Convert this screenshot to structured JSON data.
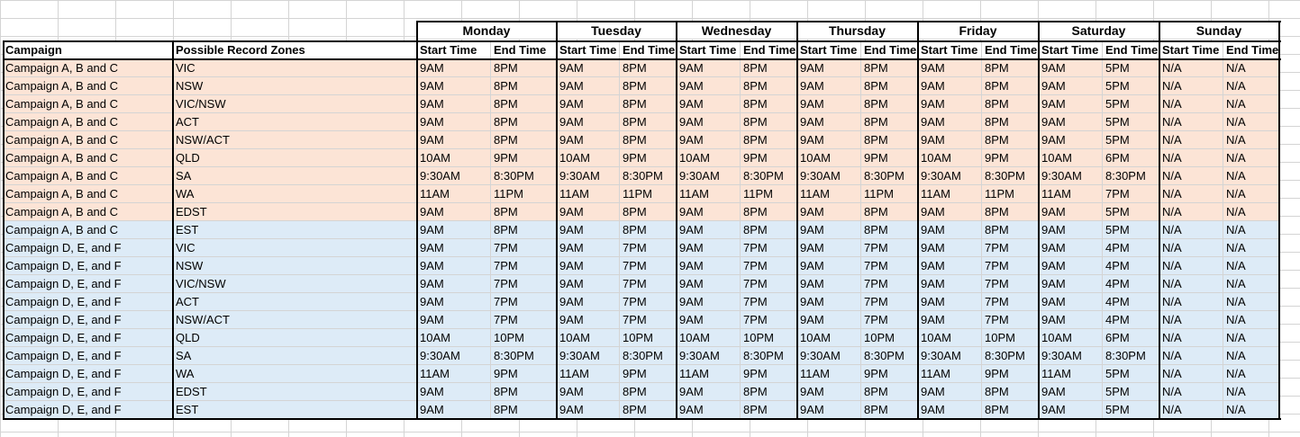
{
  "days": [
    "Monday",
    "Tuesday",
    "Wednesday",
    "Thursday",
    "Friday",
    "Saturday",
    "Sunday"
  ],
  "headers": {
    "campaign": "Campaign",
    "zones": "Possible Record Zones",
    "start": "Start Time",
    "end": "End Time"
  },
  "colors": {
    "group1": "#fce4d6",
    "group2": "#ddebf7",
    "border": "#000000",
    "gridline": "#d4d4d4"
  },
  "rows": [
    {
      "campaign": "Campaign A, B and C",
      "zone": "VIC",
      "g": 1,
      "times": [
        "9AM",
        "8PM",
        "9AM",
        "8PM",
        "9AM",
        "8PM",
        "9AM",
        "8PM",
        "9AM",
        "8PM",
        "9AM",
        "5PM",
        "N/A",
        "N/A"
      ]
    },
    {
      "campaign": "Campaign A, B and C",
      "zone": "NSW",
      "g": 1,
      "times": [
        "9AM",
        "8PM",
        "9AM",
        "8PM",
        "9AM",
        "8PM",
        "9AM",
        "8PM",
        "9AM",
        "8PM",
        "9AM",
        "5PM",
        "N/A",
        "N/A"
      ]
    },
    {
      "campaign": "Campaign A, B and C",
      "zone": "VIC/NSW",
      "g": 1,
      "times": [
        "9AM",
        "8PM",
        "9AM",
        "8PM",
        "9AM",
        "8PM",
        "9AM",
        "8PM",
        "9AM",
        "8PM",
        "9AM",
        "5PM",
        "N/A",
        "N/A"
      ]
    },
    {
      "campaign": "Campaign A, B and C",
      "zone": "ACT",
      "g": 1,
      "times": [
        "9AM",
        "8PM",
        "9AM",
        "8PM",
        "9AM",
        "8PM",
        "9AM",
        "8PM",
        "9AM",
        "8PM",
        "9AM",
        "5PM",
        "N/A",
        "N/A"
      ]
    },
    {
      "campaign": "Campaign A, B and C",
      "zone": "NSW/ACT",
      "g": 1,
      "times": [
        "9AM",
        "8PM",
        "9AM",
        "8PM",
        "9AM",
        "8PM",
        "9AM",
        "8PM",
        "9AM",
        "8PM",
        "9AM",
        "5PM",
        "N/A",
        "N/A"
      ]
    },
    {
      "campaign": "Campaign A, B and C",
      "zone": "QLD",
      "g": 1,
      "times": [
        "10AM",
        "9PM",
        "10AM",
        "9PM",
        "10AM",
        "9PM",
        "10AM",
        "9PM",
        "10AM",
        "9PM",
        "10AM",
        "6PM",
        "N/A",
        "N/A"
      ]
    },
    {
      "campaign": "Campaign A, B and C",
      "zone": "SA",
      "g": 1,
      "times": [
        "9:30AM",
        "8:30PM",
        "9:30AM",
        "8:30PM",
        "9:30AM",
        "8:30PM",
        "9:30AM",
        "8:30PM",
        "9:30AM",
        "8:30PM",
        "9:30AM",
        "8:30PM",
        "N/A",
        "N/A"
      ]
    },
    {
      "campaign": "Campaign A, B and C",
      "zone": "WA",
      "g": 1,
      "times": [
        "11AM",
        "11PM",
        "11AM",
        "11PM",
        "11AM",
        "11PM",
        "11AM",
        "11PM",
        "11AM",
        "11PM",
        "11AM",
        "7PM",
        "N/A",
        "N/A"
      ]
    },
    {
      "campaign": "Campaign A, B and C",
      "zone": "EDST",
      "g": 1,
      "times": [
        "9AM",
        "8PM",
        "9AM",
        "8PM",
        "9AM",
        "8PM",
        "9AM",
        "8PM",
        "9AM",
        "8PM",
        "9AM",
        "5PM",
        "N/A",
        "N/A"
      ]
    },
    {
      "campaign": "Campaign A, B and C",
      "zone": "EST",
      "g": 2,
      "times": [
        "9AM",
        "8PM",
        "9AM",
        "8PM",
        "9AM",
        "8PM",
        "9AM",
        "8PM",
        "9AM",
        "8PM",
        "9AM",
        "5PM",
        "N/A",
        "N/A"
      ]
    },
    {
      "campaign": "Campaign D, E, and F",
      "zone": "VIC",
      "g": 2,
      "times": [
        "9AM",
        "7PM",
        "9AM",
        "7PM",
        "9AM",
        "7PM",
        "9AM",
        "7PM",
        "9AM",
        "7PM",
        "9AM",
        "4PM",
        "N/A",
        "N/A"
      ]
    },
    {
      "campaign": "Campaign D, E, and F",
      "zone": "NSW",
      "g": 2,
      "times": [
        "9AM",
        "7PM",
        "9AM",
        "7PM",
        "9AM",
        "7PM",
        "9AM",
        "7PM",
        "9AM",
        "7PM",
        "9AM",
        "4PM",
        "N/A",
        "N/A"
      ]
    },
    {
      "campaign": "Campaign D, E, and F",
      "zone": "VIC/NSW",
      "g": 2,
      "times": [
        "9AM",
        "7PM",
        "9AM",
        "7PM",
        "9AM",
        "7PM",
        "9AM",
        "7PM",
        "9AM",
        "7PM",
        "9AM",
        "4PM",
        "N/A",
        "N/A"
      ]
    },
    {
      "campaign": "Campaign D, E, and F",
      "zone": "ACT",
      "g": 2,
      "times": [
        "9AM",
        "7PM",
        "9AM",
        "7PM",
        "9AM",
        "7PM",
        "9AM",
        "7PM",
        "9AM",
        "7PM",
        "9AM",
        "4PM",
        "N/A",
        "N/A"
      ]
    },
    {
      "campaign": "Campaign D, E, and F",
      "zone": "NSW/ACT",
      "g": 2,
      "times": [
        "9AM",
        "7PM",
        "9AM",
        "7PM",
        "9AM",
        "7PM",
        "9AM",
        "7PM",
        "9AM",
        "7PM",
        "9AM",
        "4PM",
        "N/A",
        "N/A"
      ]
    },
    {
      "campaign": "Campaign D, E, and F",
      "zone": "QLD",
      "g": 2,
      "times": [
        "10AM",
        "10PM",
        "10AM",
        "10PM",
        "10AM",
        "10PM",
        "10AM",
        "10PM",
        "10AM",
        "10PM",
        "10AM",
        "6PM",
        "N/A",
        "N/A"
      ]
    },
    {
      "campaign": "Campaign D, E, and F",
      "zone": "SA",
      "g": 2,
      "times": [
        "9:30AM",
        "8:30PM",
        "9:30AM",
        "8:30PM",
        "9:30AM",
        "8:30PM",
        "9:30AM",
        "8:30PM",
        "9:30AM",
        "8:30PM",
        "9:30AM",
        "8:30PM",
        "N/A",
        "N/A"
      ]
    },
    {
      "campaign": "Campaign D, E, and F",
      "zone": "WA",
      "g": 2,
      "times": [
        "11AM",
        "9PM",
        "11AM",
        "9PM",
        "11AM",
        "9PM",
        "11AM",
        "9PM",
        "11AM",
        "9PM",
        "11AM",
        "5PM",
        "N/A",
        "N/A"
      ]
    },
    {
      "campaign": "Campaign D, E, and F",
      "zone": "EDST",
      "g": 2,
      "times": [
        "9AM",
        "8PM",
        "9AM",
        "8PM",
        "9AM",
        "8PM",
        "9AM",
        "8PM",
        "9AM",
        "8PM",
        "9AM",
        "5PM",
        "N/A",
        "N/A"
      ]
    },
    {
      "campaign": "Campaign D, E, and F",
      "zone": "EST",
      "g": 2,
      "times": [
        "9AM",
        "8PM",
        "9AM",
        "8PM",
        "9AM",
        "8PM",
        "9AM",
        "8PM",
        "9AM",
        "8PM",
        "9AM",
        "5PM",
        "N/A",
        "N/A"
      ]
    }
  ]
}
